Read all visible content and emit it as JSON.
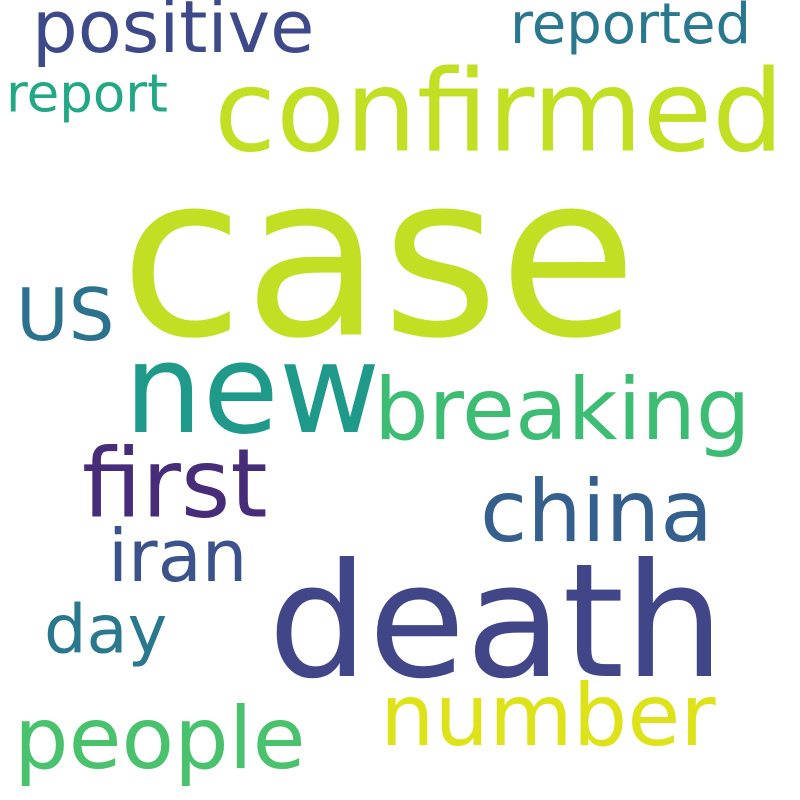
{
  "wordcloud": {
    "words": [
      {
        "id": "case",
        "text": "case",
        "color": "#c2df23"
      },
      {
        "id": "death",
        "text": "death",
        "color": "#404688"
      },
      {
        "id": "confirmed",
        "text": "confirmed",
        "color": "#c2df23"
      },
      {
        "id": "new",
        "text": "new",
        "color": "#1f9a8a"
      },
      {
        "id": "first",
        "text": "first",
        "color": "#472c7a"
      },
      {
        "id": "breaking",
        "text": "breaking",
        "color": "#3dbc74"
      },
      {
        "id": "china",
        "text": "china",
        "color": "#355f8d"
      },
      {
        "id": "number",
        "text": "number",
        "color": "#dde318"
      },
      {
        "id": "people",
        "text": "people",
        "color": "#4ac16d"
      },
      {
        "id": "positive",
        "text": "positive",
        "color": "#3e4989"
      },
      {
        "id": "us",
        "text": "US",
        "color": "#2c718e"
      },
      {
        "id": "iran",
        "text": "iran",
        "color": "#3b528b"
      },
      {
        "id": "day",
        "text": "day",
        "color": "#2a788e"
      },
      {
        "id": "reported",
        "text": "reported",
        "color": "#2a788e"
      },
      {
        "id": "report",
        "text": "report",
        "color": "#22a884"
      }
    ]
  }
}
